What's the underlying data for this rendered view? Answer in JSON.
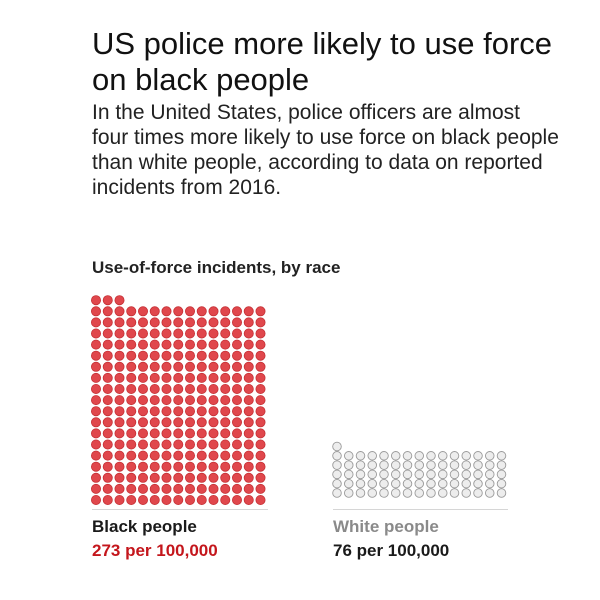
{
  "headline": "US police more likely to use force on black people",
  "deck": "In the United States, police officers are almost four times more likely to use force on black people than white people, according to data on reported incidents from 2016.",
  "chart_title": "Use-of-force incidents, by race",
  "colors": {
    "black_fill": "#e0474c",
    "black_stroke": "#c53035",
    "black_value": "#c4161c",
    "white_fill": "#ededed",
    "white_stroke": "#9a9a9a",
    "white_name": "#8a8a8a",
    "white_value": "#1a1a1a",
    "black_name": "#1a1a1a"
  },
  "chart_data": {
    "type": "waffle",
    "title": "Use-of-force incidents, by race",
    "unit": "per 100,000",
    "series": [
      {
        "name": "Black people",
        "value": 273,
        "label": "273 per 100,000"
      },
      {
        "name": "White people",
        "value": 76,
        "label": "76 per 100,000"
      }
    ]
  }
}
